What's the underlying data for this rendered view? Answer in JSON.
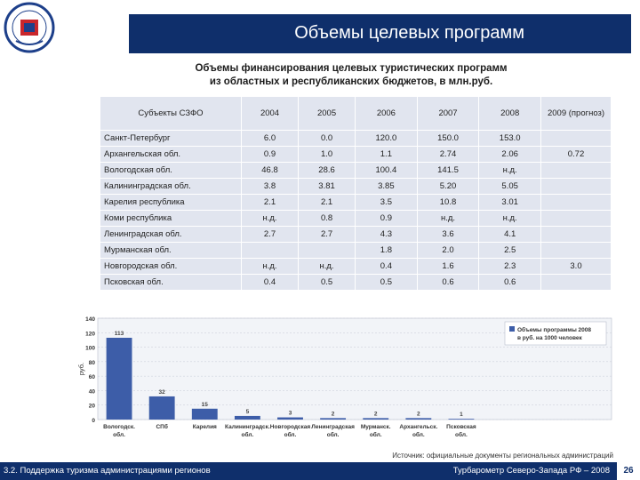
{
  "header": {
    "title": "Объемы целевых программ"
  },
  "table": {
    "caption_line1": "Объемы финансирования целевых туристических программ",
    "caption_line2": "из областных и республиканских бюджетов, в млн.руб.",
    "columns": [
      "Субъекты СЗФО",
      "2004",
      "2005",
      "2006",
      "2007",
      "2008",
      "2009 (прогноз)"
    ],
    "rows": [
      {
        "name": "Санкт-Петербург",
        "v": [
          "6.0",
          "0.0",
          "120.0",
          "150.0",
          "153.0",
          ""
        ]
      },
      {
        "name": "Архангельская обл.",
        "v": [
          "0.9",
          "1.0",
          "1.1",
          "2.74",
          "2.06",
          "0.72"
        ]
      },
      {
        "name": "Вологодская обл.",
        "v": [
          "46.8",
          "28.6",
          "100.4",
          "141.5",
          "н.д.",
          ""
        ]
      },
      {
        "name": "Калининградская обл.",
        "v": [
          "3.8",
          "3.81",
          "3.85",
          "5.20",
          "5.05",
          ""
        ]
      },
      {
        "name": "Карелия республика",
        "v": [
          "2.1",
          "2.1",
          "3.5",
          "10.8",
          "3.01",
          ""
        ]
      },
      {
        "name": "Коми республика",
        "v": [
          "н.д.",
          "0.8",
          "0.9",
          "н.д.",
          "н.д.",
          ""
        ]
      },
      {
        "name": "Ленинградская обл.",
        "v": [
          "2.7",
          "2.7",
          "4.3",
          "3.6",
          "4.1",
          ""
        ]
      },
      {
        "name": "Мурманская обл.",
        "v": [
          "",
          "",
          "1.8",
          "2.0",
          "2.5",
          ""
        ]
      },
      {
        "name": "Новгородская обл.",
        "v": [
          "н.д.",
          "н.д.",
          "0.4",
          "1.6",
          "2.3",
          "3.0"
        ]
      },
      {
        "name": "Псковская обл.",
        "v": [
          "0.4",
          "0.5",
          "0.5",
          "0.6",
          "0.6",
          ""
        ]
      }
    ]
  },
  "chart_data": {
    "type": "bar",
    "categories": [
      "Вологодск. обл.",
      "СПб",
      "Карелия",
      "Калининградск. обл.",
      "Новгородская обл.",
      "Ленинградская обл.",
      "Мурманск. обл.",
      "Архангельск. обл.",
      "Псковская обл."
    ],
    "series": [
      {
        "name": "Объемы программы 2008 в руб. на 1000 человек",
        "values": [
          113,
          32,
          15,
          5,
          3,
          2,
          2,
          2,
          1
        ]
      }
    ],
    "data_labels": [
      "113",
      "32",
      "15",
      "5",
      "3",
      "2",
      "2",
      "2",
      "1"
    ],
    "ylabel": "руб.",
    "ylim": [
      0,
      140
    ],
    "yticks": [
      "0",
      "20",
      "40",
      "60",
      "80",
      "100",
      "120",
      "140"
    ],
    "legend_position": "top-right",
    "grid": true,
    "bar_color": "#3d5da8"
  },
  "source": "Источник: официальные документы региональных администраций",
  "footer": {
    "left": "3.2. Поддержка туризма администрациями регионов",
    "right": "Турбарометр Северо-Запада РФ – 2008",
    "page": "26"
  }
}
